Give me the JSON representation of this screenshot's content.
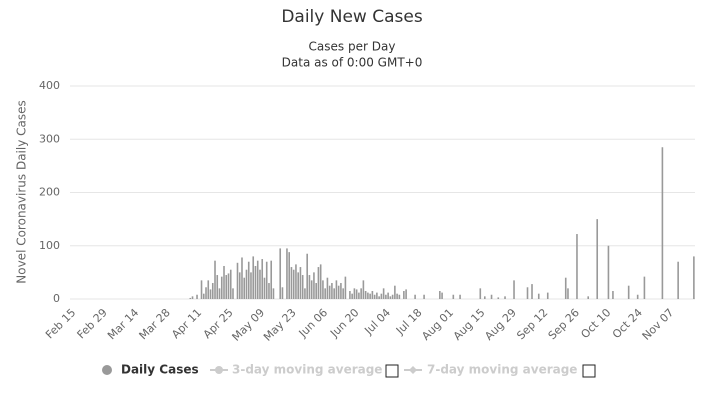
{
  "chart_data": {
    "type": "bar",
    "title": "Daily New Cases",
    "subtitle": [
      "Cases per Day",
      "Data as of 0:00 GMT+0"
    ],
    "y_axis_label": "Novel Coronavirus Daily Cases",
    "categories": [
      "Feb 15",
      null,
      null,
      null,
      null,
      null,
      null,
      null,
      null,
      null,
      null,
      null,
      null,
      null,
      "Feb 29",
      null,
      null,
      null,
      null,
      null,
      null,
      null,
      null,
      null,
      null,
      null,
      null,
      null,
      "Mar 14",
      null,
      null,
      null,
      null,
      null,
      null,
      null,
      null,
      null,
      null,
      null,
      null,
      null,
      "Mar 28",
      null,
      null,
      null,
      null,
      null,
      null,
      null,
      null,
      null,
      null,
      null,
      null,
      null,
      "Apr 11",
      null,
      null,
      null,
      null,
      null,
      null,
      null,
      null,
      null,
      null,
      null,
      null,
      null,
      "Apr 25",
      null,
      null,
      null,
      null,
      null,
      null,
      null,
      null,
      null,
      null,
      null,
      null,
      null,
      "May 09",
      null,
      null,
      null,
      null,
      null,
      null,
      null,
      null,
      null,
      null,
      null,
      null,
      null,
      "May 23",
      null,
      null,
      null,
      null,
      null,
      null,
      null,
      null,
      null,
      null,
      null,
      null,
      null,
      "Jun 06",
      null,
      null,
      null,
      null,
      null,
      null,
      null,
      null,
      null,
      null,
      null,
      null,
      null,
      "Jun 20",
      null,
      null,
      null,
      null,
      null,
      null,
      null,
      null,
      null,
      null,
      null,
      null,
      null,
      "Jul 04",
      null,
      null,
      null,
      null,
      null,
      null,
      null,
      null,
      null,
      null,
      null,
      null,
      null,
      "Jul 18",
      null,
      null,
      null,
      null,
      null,
      null,
      null,
      null,
      null,
      null,
      null,
      null,
      null,
      "Aug 01",
      null,
      null,
      null,
      null,
      null,
      null,
      null,
      null,
      null,
      null,
      null,
      null,
      null,
      "Aug 15",
      null,
      null,
      null,
      null,
      null,
      null,
      null,
      null,
      null,
      null,
      null,
      null,
      null,
      "Aug 29",
      null,
      null,
      null,
      null,
      null,
      null,
      null,
      null,
      null,
      null,
      null,
      null,
      null,
      "Sep 12",
      null,
      null,
      null,
      null,
      null,
      null,
      null,
      null,
      null,
      null,
      null,
      null,
      null,
      "Sep 26",
      null,
      null,
      null,
      null,
      null,
      null,
      null,
      null,
      null,
      null,
      null,
      null,
      null,
      "Oct 10",
      null,
      null,
      null,
      null,
      null,
      null,
      null,
      null,
      null,
      null,
      null,
      null,
      null,
      "Oct 24",
      null,
      null,
      null,
      null,
      null,
      null,
      null,
      null,
      null,
      null,
      null,
      null,
      null,
      "Nov 07",
      null,
      null,
      null,
      null,
      null,
      null,
      null,
      null,
      null,
      null,
      null
    ],
    "series": [
      {
        "name": "Daily Cases",
        "color": "#999999",
        "values": [
          0,
          0,
          0,
          0,
          0,
          0,
          0,
          0,
          0,
          0,
          0,
          0,
          0,
          0,
          0,
          0,
          0,
          0,
          0,
          0,
          0,
          0,
          0,
          0,
          0,
          0,
          0,
          0,
          0,
          0,
          0,
          0,
          0,
          0,
          0,
          0,
          0,
          0,
          0,
          0,
          0,
          0,
          0,
          0,
          0,
          0,
          0,
          0,
          0,
          0,
          0,
          0,
          0,
          2,
          5,
          0,
          8,
          0,
          35,
          10,
          22,
          35,
          18,
          30,
          72,
          45,
          20,
          42,
          62,
          45,
          48,
          55,
          20,
          0,
          68,
          50,
          78,
          40,
          55,
          70,
          50,
          80,
          62,
          72,
          55,
          75,
          40,
          70,
          30,
          72,
          20,
          0,
          0,
          95,
          22,
          0,
          95,
          88,
          60,
          55,
          65,
          50,
          60,
          45,
          20,
          85,
          45,
          35,
          50,
          30,
          60,
          65,
          35,
          20,
          40,
          25,
          30,
          20,
          35,
          25,
          30,
          20,
          42,
          0,
          15,
          10,
          20,
          18,
          12,
          20,
          35,
          15,
          12,
          10,
          15,
          8,
          12,
          5,
          10,
          20,
          8,
          12,
          5,
          8,
          25,
          10,
          8,
          0,
          15,
          18,
          0,
          0,
          0,
          8,
          0,
          0,
          0,
          8,
          0,
          0,
          0,
          0,
          0,
          0,
          15,
          12,
          0,
          0,
          0,
          0,
          8,
          0,
          0,
          8,
          0,
          0,
          0,
          0,
          0,
          0,
          0,
          0,
          20,
          0,
          5,
          0,
          0,
          8,
          0,
          0,
          3,
          0,
          0,
          5,
          0,
          0,
          0,
          35,
          0,
          0,
          0,
          0,
          0,
          22,
          0,
          28,
          0,
          0,
          10,
          0,
          0,
          0,
          12,
          0,
          0,
          0,
          0,
          0,
          0,
          0,
          40,
          20,
          0,
          0,
          0,
          122,
          0,
          0,
          0,
          0,
          5,
          0,
          0,
          0,
          150,
          0,
          0,
          0,
          0,
          100,
          0,
          15,
          0,
          0,
          0,
          0,
          0,
          0,
          25,
          0,
          0,
          0,
          8,
          0,
          0,
          42,
          0,
          0,
          0,
          0,
          0,
          0,
          0,
          285,
          0,
          0,
          0,
          0,
          0,
          0,
          70,
          0,
          0,
          0,
          0,
          0,
          0,
          80
        ]
      }
    ],
    "hidden_series": [
      "3-day moving average",
      "7-day moving average"
    ],
    "ylim": [
      0,
      400
    ],
    "yticks": [
      0,
      100,
      200,
      300,
      400
    ],
    "grid": true
  }
}
